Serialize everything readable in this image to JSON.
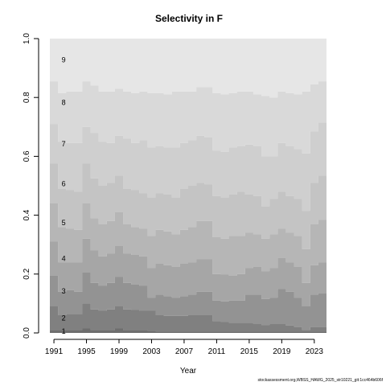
{
  "chart_data": {
    "type": "area",
    "title": "Selectivity in F",
    "xlabel": "Year",
    "ylabel": "",
    "ylim": [
      0,
      1
    ],
    "y_ticks": [
      "0.0",
      "0.2",
      "0.4",
      "0.6",
      "0.8",
      "1.0"
    ],
    "x_ticks": [
      "1991",
      "1995",
      "1999",
      "2003",
      "2007",
      "2011",
      "2015",
      "2019",
      "2023"
    ],
    "x": [
      1991,
      1992,
      1993,
      1994,
      1995,
      1996,
      1997,
      1998,
      1999,
      2000,
      2001,
      2002,
      2003,
      2004,
      2005,
      2006,
      2007,
      2008,
      2009,
      2010,
      2011,
      2012,
      2013,
      2014,
      2015,
      2016,
      2017,
      2018,
      2019,
      2020,
      2021,
      2022,
      2023,
      2024
    ],
    "band_labels": [
      "1",
      "2",
      "3",
      "4",
      "5",
      "6",
      "7",
      "8",
      "9"
    ],
    "band_colors": [
      "#6e6e6e",
      "#808080",
      "#939393",
      "#a6a6a6",
      "#b6b6b6",
      "#c4c4c4",
      "#cfcfcf",
      "#d9d9d9",
      "#e6e6e6"
    ],
    "cumulative_boundaries": [
      [
        0.01,
        0.01,
        0.01,
        0.01,
        0.015,
        0.01,
        0.01,
        0.01,
        0.015,
        0.01,
        0.01,
        0.01,
        0.008,
        0.005,
        0.005,
        0.005,
        0.005,
        0.005,
        0.005,
        0.005,
        0.005,
        0.005,
        0.005,
        0.005,
        0.005,
        0.005,
        0.005,
        0.005,
        0.005,
        0.005,
        0.005,
        0.005,
        0.005,
        0.005
      ],
      [
        0.09,
        0.06,
        0.065,
        0.065,
        0.1,
        0.08,
        0.075,
        0.08,
        0.09,
        0.08,
        0.078,
        0.075,
        0.075,
        0.06,
        0.058,
        0.058,
        0.058,
        0.06,
        0.06,
        0.06,
        0.04,
        0.037,
        0.035,
        0.035,
        0.035,
        0.03,
        0.027,
        0.03,
        0.03,
        0.025,
        0.02,
        0.01,
        0.02,
        0.02
      ],
      [
        0.195,
        0.14,
        0.145,
        0.14,
        0.205,
        0.17,
        0.16,
        0.17,
        0.19,
        0.17,
        0.165,
        0.16,
        0.12,
        0.13,
        0.125,
        0.12,
        0.125,
        0.13,
        0.14,
        0.14,
        0.11,
        0.107,
        0.11,
        0.11,
        0.13,
        0.13,
        0.115,
        0.12,
        0.15,
        0.14,
        0.12,
        0.09,
        0.13,
        0.135
      ],
      [
        0.31,
        0.24,
        0.24,
        0.24,
        0.32,
        0.28,
        0.26,
        0.27,
        0.295,
        0.27,
        0.265,
        0.26,
        0.22,
        0.235,
        0.23,
        0.225,
        0.235,
        0.24,
        0.25,
        0.25,
        0.2,
        0.198,
        0.195,
        0.2,
        0.22,
        0.225,
        0.21,
        0.22,
        0.255,
        0.24,
        0.225,
        0.17,
        0.23,
        0.24
      ],
      [
        0.44,
        0.36,
        0.355,
        0.35,
        0.44,
        0.39,
        0.37,
        0.38,
        0.41,
        0.37,
        0.36,
        0.355,
        0.33,
        0.35,
        0.345,
        0.335,
        0.35,
        0.36,
        0.38,
        0.38,
        0.325,
        0.32,
        0.33,
        0.33,
        0.34,
        0.335,
        0.32,
        0.335,
        0.355,
        0.34,
        0.33,
        0.285,
        0.37,
        0.385
      ],
      [
        0.575,
        0.49,
        0.485,
        0.48,
        0.575,
        0.525,
        0.5,
        0.51,
        0.535,
        0.49,
        0.485,
        0.475,
        0.46,
        0.475,
        0.47,
        0.46,
        0.49,
        0.5,
        0.51,
        0.505,
        0.465,
        0.46,
        0.47,
        0.48,
        0.47,
        0.465,
        0.43,
        0.455,
        0.48,
        0.465,
        0.455,
        0.415,
        0.51,
        0.535
      ],
      [
        0.71,
        0.65,
        0.645,
        0.645,
        0.7,
        0.68,
        0.65,
        0.645,
        0.67,
        0.66,
        0.645,
        0.655,
        0.63,
        0.635,
        0.63,
        0.63,
        0.645,
        0.655,
        0.67,
        0.665,
        0.62,
        0.615,
        0.63,
        0.635,
        0.64,
        0.635,
        0.6,
        0.6,
        0.645,
        0.635,
        0.625,
        0.61,
        0.685,
        0.715
      ],
      [
        0.855,
        0.815,
        0.82,
        0.82,
        0.855,
        0.84,
        0.82,
        0.82,
        0.83,
        0.82,
        0.815,
        0.82,
        0.815,
        0.815,
        0.81,
        0.82,
        0.82,
        0.82,
        0.835,
        0.835,
        0.815,
        0.81,
        0.815,
        0.82,
        0.82,
        0.81,
        0.805,
        0.8,
        0.82,
        0.815,
        0.81,
        0.82,
        0.845,
        0.855
      ],
      [
        1,
        1,
        1,
        1,
        1,
        1,
        1,
        1,
        1,
        1,
        1,
        1,
        1,
        1,
        1,
        1,
        1,
        1,
        1,
        1,
        1,
        1,
        1,
        1,
        1,
        1,
        1,
        1,
        1,
        1,
        1,
        1,
        1,
        1
      ]
    ]
  },
  "footer": "stockassessment.org,WBSS_HAWG_2025_str10221_git:1cc464b606f"
}
